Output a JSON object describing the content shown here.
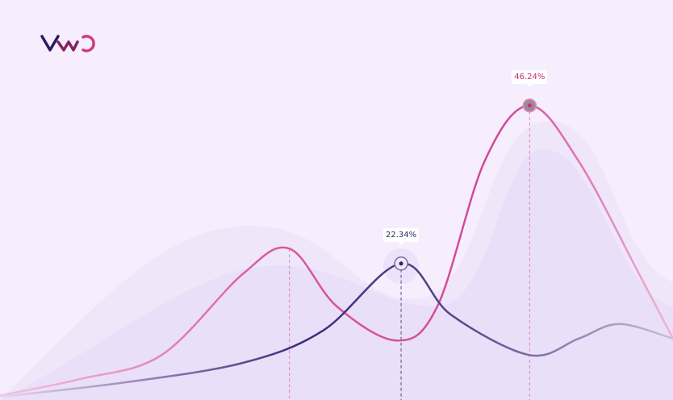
{
  "brand": {
    "logo_text": "VWO",
    "colors": [
      "#2a1f5c",
      "#8b1f5d",
      "#d2397a"
    ]
  },
  "chart_data": {
    "type": "line",
    "title": "",
    "xlabel": "",
    "ylabel": "",
    "grid": false,
    "ylim": [
      0,
      50
    ],
    "xlim": [
      0,
      100
    ],
    "series": [
      {
        "color": "#d2479a",
        "x": [
          0,
          12,
          24,
          36,
          43,
          50,
          59,
          65,
          72,
          78.7,
          86,
          95,
          100
        ],
        "values": [
          2.4,
          4.9,
          8.5,
          20.7,
          24.6,
          15.9,
          10.7,
          15.9,
          37.8,
          46.24,
          37.8,
          20.7,
          11.0
        ]
      },
      {
        "color": "#3d2a78",
        "x": [
          0,
          18,
          36,
          48,
          59.6,
          67,
          78.7,
          86,
          92,
          100
        ],
        "values": [
          2.2,
          4.3,
          7.3,
          12.2,
          22.34,
          14.6,
          8.5,
          11.0,
          13.2,
          11.0
        ]
      }
    ],
    "annotations": [
      {
        "series": 0,
        "x": 78.7,
        "value": 46.24,
        "text": "46.24%",
        "color": "#c2306f"
      },
      {
        "series": 1,
        "x": 59.6,
        "value": 22.34,
        "text": "22.34%",
        "color": "#2f2a5a"
      }
    ],
    "markers": [
      {
        "series": 0,
        "x": 43
      },
      {
        "series": 1,
        "x": 59.6
      },
      {
        "series": 0,
        "x": 78.7
      }
    ]
  }
}
